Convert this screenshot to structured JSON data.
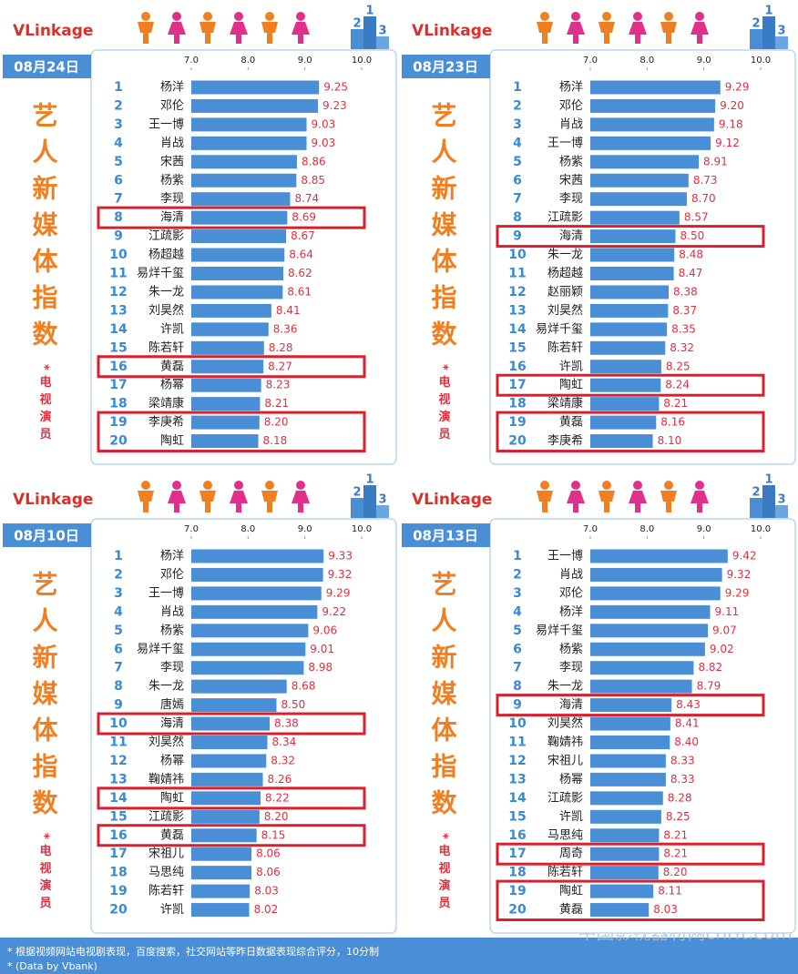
{
  "chart_data": [
    {
      "type": "bar",
      "brand": "VLinkage",
      "date": "08月24日",
      "title": "艺人新媒体指数",
      "subtitle": "*电视演员",
      "xlim": [
        7,
        10
      ],
      "xticks": [
        {
          "value": 7,
          "label": "7.0"
        },
        {
          "value": 8,
          "label": "8.0"
        },
        {
          "value": 9,
          "label": "9.0"
        },
        {
          "value": 10,
          "label": "10.0"
        }
      ],
      "color": "#4a8fd6",
      "label_color": "#e0303f",
      "highlight_color": "#d9202e",
      "ranks": [
        1,
        2,
        3,
        4,
        5,
        6,
        7,
        8,
        9,
        10,
        11,
        12,
        13,
        14,
        15,
        16,
        17,
        18,
        19,
        20
      ],
      "categories": [
        "杨洋",
        "邓伦",
        "王一博",
        "肖战",
        "宋茜",
        "杨紫",
        "李现",
        "海清",
        "江疏影",
        "杨超越",
        "易烊千玺",
        "朱一龙",
        "刘昊然",
        "许凯",
        "陈若轩",
        "黄磊",
        "杨幂",
        "梁靖康",
        "李庚希",
        "陶虹"
      ],
      "values": [
        9.25,
        9.23,
        9.03,
        9.03,
        8.86,
        8.85,
        8.74,
        8.69,
        8.67,
        8.64,
        8.62,
        8.61,
        8.41,
        8.36,
        8.28,
        8.27,
        8.23,
        8.21,
        8.2,
        8.18
      ],
      "value_labels": [
        "9.25",
        "9.23",
        "9.03",
        "9.03",
        "8.86",
        "8.85",
        "8.74",
        "8.69",
        "8.67",
        "8.64",
        "8.62",
        "8.61",
        "8.41",
        "8.36",
        "8.28",
        "8.27",
        "8.23",
        "8.21",
        "8.20",
        "8.18"
      ],
      "highlights": [
        [
          7,
          7
        ],
        [
          15,
          15
        ],
        [
          18,
          19
        ]
      ]
    },
    {
      "type": "bar",
      "brand": "VLinkage",
      "date": "08月23日",
      "title": "艺人新媒体指数",
      "subtitle": "*电视演员",
      "xlim": [
        7,
        10
      ],
      "xticks": [
        {
          "value": 7,
          "label": "7.0"
        },
        {
          "value": 8,
          "label": "8.0"
        },
        {
          "value": 9,
          "label": "9.0"
        },
        {
          "value": 10,
          "label": "10.0"
        }
      ],
      "color": "#4a8fd6",
      "label_color": "#e0303f",
      "highlight_color": "#d9202e",
      "ranks": [
        1,
        2,
        3,
        4,
        5,
        6,
        7,
        8,
        9,
        10,
        11,
        12,
        13,
        14,
        15,
        16,
        17,
        18,
        19,
        20
      ],
      "categories": [
        "杨洋",
        "邓伦",
        "肖战",
        "王一博",
        "杨紫",
        "宋茜",
        "李现",
        "江疏影",
        "海清",
        "朱一龙",
        "杨超越",
        "赵丽颖",
        "刘昊然",
        "易烊千玺",
        "陈若轩",
        "许凯",
        "陶虹",
        "梁靖康",
        "黄磊",
        "李庚希"
      ],
      "values": [
        9.29,
        9.2,
        9.18,
        9.12,
        8.91,
        8.73,
        8.7,
        8.57,
        8.5,
        8.48,
        8.47,
        8.38,
        8.37,
        8.35,
        8.32,
        8.25,
        8.24,
        8.21,
        8.16,
        8.1
      ],
      "value_labels": [
        "9.29",
        "9.20",
        "9.18",
        "9.12",
        "8.91",
        "8.73",
        "8.70",
        "8.57",
        "8.50",
        "8.48",
        "8.47",
        "8.38",
        "8.37",
        "8.35",
        "8.32",
        "8.25",
        "8.24",
        "8.21",
        "8.16",
        "8.10"
      ],
      "highlights": [
        [
          8,
          8
        ],
        [
          16,
          16
        ],
        [
          18,
          19
        ]
      ]
    },
    {
      "type": "bar",
      "brand": "VLinkage",
      "date": "08月10日",
      "title": "艺人新媒体指数",
      "subtitle": "*电视演员",
      "xlim": [
        7,
        10
      ],
      "xticks": [
        {
          "value": 7,
          "label": "7.0"
        },
        {
          "value": 8,
          "label": "8.0"
        },
        {
          "value": 9,
          "label": "9.0"
        },
        {
          "value": 10,
          "label": "10.0"
        }
      ],
      "color": "#4a8fd6",
      "label_color": "#e0303f",
      "highlight_color": "#d9202e",
      "ranks": [
        1,
        2,
        3,
        4,
        5,
        6,
        7,
        8,
        9,
        10,
        11,
        12,
        13,
        14,
        15,
        16,
        17,
        18,
        19,
        20
      ],
      "categories": [
        "杨洋",
        "邓伦",
        "王一博",
        "肖战",
        "杨紫",
        "易烊千玺",
        "李现",
        "朱一龙",
        "唐嫣",
        "海清",
        "刘昊然",
        "杨幂",
        "鞠婧祎",
        "陶虹",
        "江疏影",
        "黄磊",
        "宋祖儿",
        "马思纯",
        "陈若轩",
        "许凯"
      ],
      "values": [
        9.33,
        9.32,
        9.29,
        9.22,
        9.06,
        9.01,
        8.98,
        8.68,
        8.5,
        8.38,
        8.34,
        8.32,
        8.26,
        8.22,
        8.2,
        8.15,
        8.06,
        8.06,
        8.03,
        8.02
      ],
      "value_labels": [
        "9.33",
        "9.32",
        "9.29",
        "9.22",
        "9.06",
        "9.01",
        "8.98",
        "8.68",
        "8.50",
        "8.38",
        "8.34",
        "8.32",
        "8.26",
        "8.22",
        "8.20",
        "8.15",
        "8.06",
        "8.06",
        "8.03",
        "8.02"
      ],
      "highlights": [
        [
          9,
          9
        ],
        [
          13,
          13
        ],
        [
          15,
          15
        ]
      ]
    },
    {
      "type": "bar",
      "brand": "VLinkage",
      "date": "08月13日",
      "title": "艺人新媒体指数",
      "subtitle": "*电视演员",
      "xlim": [
        7,
        10
      ],
      "xticks": [
        {
          "value": 7,
          "label": "7.0"
        },
        {
          "value": 8,
          "label": "8.0"
        },
        {
          "value": 9,
          "label": "9.0"
        },
        {
          "value": 10,
          "label": "10.0"
        }
      ],
      "color": "#4a8fd6",
      "label_color": "#e0303f",
      "highlight_color": "#d9202e",
      "ranks": [
        1,
        2,
        3,
        4,
        5,
        6,
        7,
        8,
        9,
        10,
        11,
        12,
        13,
        14,
        15,
        16,
        17,
        18,
        19,
        20
      ],
      "categories": [
        "王一博",
        "肖战",
        "邓伦",
        "杨洋",
        "易烊千玺",
        "杨紫",
        "李现",
        "朱一龙",
        "海清",
        "刘昊然",
        "鞠婧祎",
        "宋祖儿",
        "杨幂",
        "江疏影",
        "许凯",
        "马思纯",
        "周奇",
        "陈若轩",
        "陶虹",
        "黄磊"
      ],
      "values": [
        9.42,
        9.32,
        9.29,
        9.11,
        9.07,
        9.02,
        8.82,
        8.79,
        8.43,
        8.41,
        8.4,
        8.33,
        8.33,
        8.28,
        8.25,
        8.21,
        8.21,
        8.2,
        8.11,
        8.03
      ],
      "value_labels": [
        "9.42",
        "9.32",
        "9.29",
        "9.11",
        "9.07",
        "9.02",
        "8.82",
        "8.79",
        "8.43",
        "8.41",
        "8.40",
        "8.33",
        "8.33",
        "8.28",
        "8.25",
        "8.21",
        "8.21",
        "8.20",
        "8.11",
        "8.03"
      ],
      "highlights": [
        [
          8,
          8
        ],
        [
          16,
          16
        ],
        [
          18,
          19
        ]
      ]
    }
  ],
  "footnote": [
    "* 根据视频网站电视剧表现，百度搜索，社交网站等昨日数据表现综合评分，10分制",
    "* (Data by Vbank)"
  ],
  "watermark": "中国影视器材网cnrft.com"
}
